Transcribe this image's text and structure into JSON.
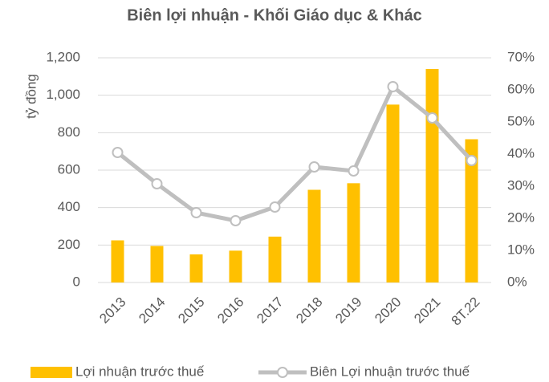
{
  "chart_data": {
    "type": "bar",
    "title": "Biên lợi nhuận - Khối Giáo dục & Khác",
    "y_label": "tỷ đồng",
    "categories": [
      "2013",
      "2014",
      "2015",
      "2016",
      "2017",
      "2018",
      "2019",
      "2020",
      "2021",
      "8T.22"
    ],
    "series": [
      {
        "name": "Lợi nhuận trước thuế",
        "type": "bar",
        "color": "#ffc000",
        "values": [
          225,
          195,
          150,
          170,
          245,
          495,
          530,
          950,
          1140,
          765
        ]
      },
      {
        "name": "Biên Lợi nhuận trước thuế",
        "type": "line",
        "axis": "y2",
        "color": "#bfbfbf",
        "values": [
          40.5,
          30.75,
          21.75,
          19.25,
          23.5,
          36,
          34.75,
          61,
          51.25,
          38
        ]
      }
    ],
    "ylim": [
      0,
      1200
    ],
    "yticks": [
      0,
      200,
      400,
      600,
      800,
      {
        "value": 1000,
        "label": "1,000"
      },
      {
        "value": 1200,
        "label": "1,200"
      }
    ],
    "y2lim": [
      0,
      70
    ],
    "y2ticks": [
      {
        "value": 0,
        "label": "0%"
      },
      {
        "value": 10,
        "label": "10%"
      },
      {
        "value": 20,
        "label": "20%"
      },
      {
        "value": 30,
        "label": "30%"
      },
      {
        "value": 40,
        "label": "40%"
      },
      {
        "value": 50,
        "label": "50%"
      },
      {
        "value": 60,
        "label": "60%"
      },
      {
        "value": 70,
        "label": "70%"
      }
    ],
    "grid": true,
    "legend": "bottom"
  }
}
